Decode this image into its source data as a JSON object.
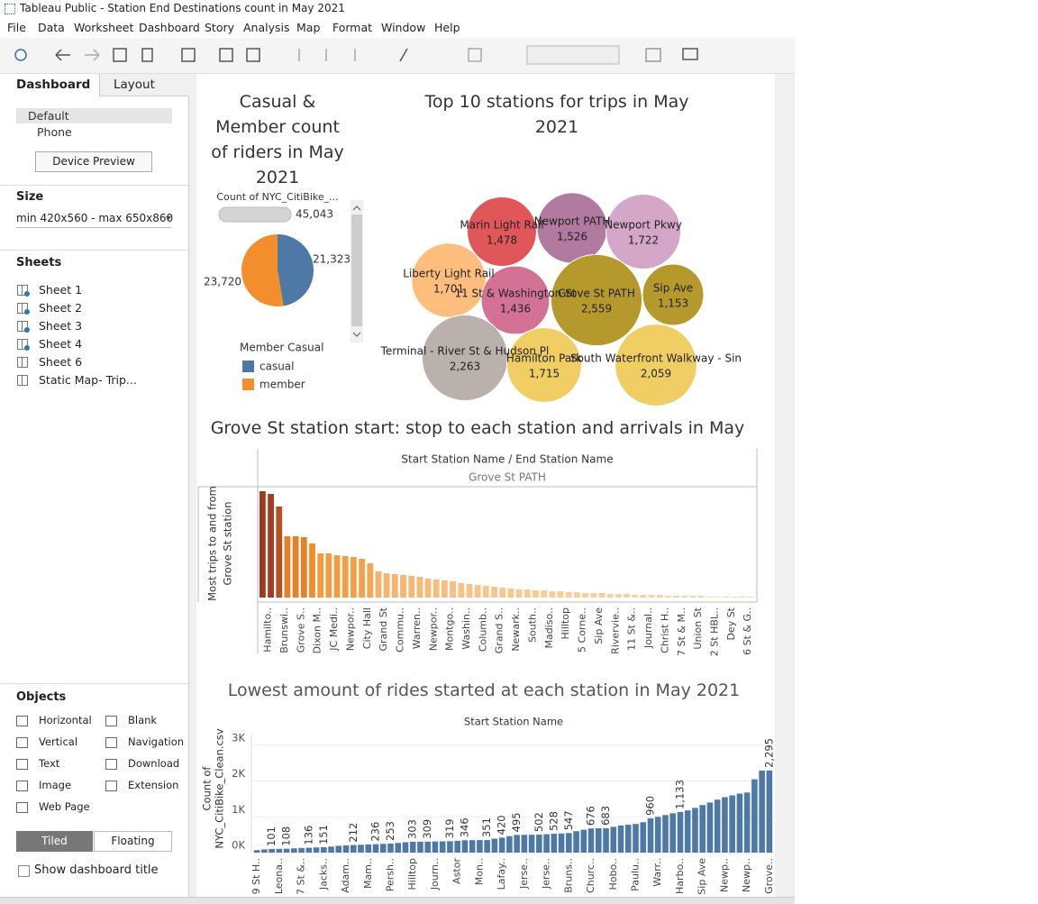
{
  "window_title": "Tableau Public - Station End Destinations count in May 2021",
  "menu": [
    "File",
    "Data",
    "Worksheet",
    "Dashboard",
    "Story",
    "Analysis",
    "Map",
    "Format",
    "Window",
    "Help"
  ],
  "sidebar": {
    "tabs": [
      "Dashboard",
      "Layout"
    ],
    "devices": [
      "Default",
      "Phone"
    ],
    "device_preview": "Device Preview",
    "size_heading": "Size",
    "size_value": "min 420x560 - max 650x860",
    "sheets_heading": "Sheets",
    "sheets": [
      "Sheet 1",
      "Sheet 2",
      "Sheet 3",
      "Sheet 4",
      "Sheet 6",
      "Static Map- Trip..."
    ],
    "objects_heading": "Objects",
    "objects": [
      "Horizontal",
      "Blank",
      "Vertical",
      "Navigation",
      "Text",
      "Download",
      "Image",
      "Extension",
      "Web Page"
    ],
    "layout_modes": [
      "Tiled",
      "Floating"
    ],
    "show_title": "Show dashboard title"
  },
  "chart_data": [
    {
      "type": "pie",
      "title": "Casual & Member count of riders in May 2021",
      "measure": "Count of NYC_CitiBike_...",
      "total": 45043,
      "total_label": "45,043",
      "legend_title": "Member Casual",
      "categories": [
        "casual",
        "member"
      ],
      "values": [
        21323,
        23720
      ],
      "value_labels": [
        "21,323",
        "23,720"
      ],
      "colors": [
        "#4e79a7",
        "#f28e2b"
      ]
    },
    {
      "type": "bubble",
      "title": "Top 10 stations for trips in May 2021",
      "categories": [
        "Marin Light Rail",
        "Newport PATH",
        "Newport Pkwy",
        "Liberty Light Rail",
        "11 St & Washington St",
        "Grove St PATH",
        "Sip Ave",
        "Terminal - River St & Hudson Pl",
        "Hamilton Park",
        "South Waterfront Walkway - Sin"
      ],
      "values": [
        1478,
        1526,
        1722,
        1701,
        1436,
        2559,
        1153,
        2263,
        1715,
        2059
      ],
      "value_labels": [
        "1,478",
        "1,526",
        "1,722",
        "1,701",
        "1,436",
        "2,559",
        "1,153",
        "2,263",
        "1,715",
        "2,059"
      ],
      "colors": [
        "#e15759",
        "#b07aa1",
        "#d4a6c8",
        "#ffbe7d",
        "#d37295",
        "#b6992d",
        "#b6992d",
        "#bab0ac",
        "#f1ce63",
        "#f1ce63"
      ]
    },
    {
      "type": "bar",
      "title": "Grove St station start: stop to each station and arrivals in May",
      "header": "Start Station Name / End Station Name",
      "subheader": "Grove St PATH",
      "y_label": [
        "Most trips to and from",
        "Grove St station"
      ],
      "color_range": [
        "#fbd4a6",
        "#f28e2b",
        "#a0391e"
      ],
      "categories": [
        "Hamilto..",
        null,
        "Brunswi..",
        null,
        "Grove S..",
        null,
        "Dixon M..",
        null,
        "JC Medi..",
        null,
        "Newpor..",
        null,
        "City Hall",
        null,
        "Grand St",
        null,
        "Commu..",
        null,
        "Warren..",
        null,
        "Newpor..",
        null,
        "Montgo..",
        null,
        "Washin..",
        null,
        "Columb..",
        null,
        "Grand S..",
        null,
        "Newark..",
        null,
        "South..",
        null,
        "Madiso..",
        null,
        "Hilltop",
        null,
        "5 Corne..",
        null,
        "Sip Ave",
        null,
        "Rivervie..",
        null,
        "11 St &..",
        null,
        "Journal..",
        null,
        "Christ H..",
        null,
        "7 St & M..",
        null,
        "Union St",
        null,
        "2 St HBL..",
        null,
        "Dey St",
        null,
        "6 St & G..",
        null
      ],
      "values": [
        118,
        115,
        101,
        68,
        68,
        67,
        60,
        49,
        49,
        47,
        46,
        45,
        43,
        38,
        29,
        27,
        26,
        25,
        24,
        23,
        21,
        20,
        19,
        18,
        16,
        15,
        14,
        13,
        12,
        11,
        10,
        9,
        9,
        8,
        8,
        7,
        7,
        6,
        6,
        5,
        5,
        5,
        4,
        4,
        4,
        3,
        3,
        3,
        3,
        2,
        2,
        2,
        2,
        2,
        1,
        1,
        1,
        1,
        1,
        1
      ]
    },
    {
      "type": "bar",
      "title": "Lowest amount of rides started at each station in May 2021",
      "header": "Start Station Name",
      "y_label": [
        "Count of",
        "NYC_CitiBike_Clean.csv"
      ],
      "color": "#4e79a7",
      "ylim": [
        0,
        3300
      ],
      "yticks": [
        {
          "value": 0,
          "label": "0K"
        },
        {
          "value": 1000,
          "label": "1K"
        },
        {
          "value": 2000,
          "label": "2K"
        },
        {
          "value": 3000,
          "label": "3K"
        }
      ],
      "grid": true,
      "categories": [
        "9 St H..",
        null,
        null,
        "Leona..",
        null,
        null,
        "7 St &..",
        null,
        null,
        "Jacks..",
        null,
        null,
        "Adam..",
        null,
        null,
        "Mam..",
        null,
        null,
        "Persh..",
        null,
        null,
        "Hilltop",
        null,
        null,
        "Journ..",
        null,
        null,
        "Astor",
        null,
        null,
        "Mon..",
        null,
        null,
        "Lafay..",
        null,
        null,
        "Jerse..",
        null,
        null,
        "Jerse..",
        null,
        null,
        "Bruns..",
        null,
        null,
        "Churc..",
        null,
        null,
        "Hobo..",
        null,
        null,
        "Paulu..",
        null,
        null,
        "Warr..",
        null,
        null,
        "Harbo..",
        null,
        null,
        "Sip Ave",
        null,
        null,
        "Newp..",
        null,
        null,
        "Newp..",
        null,
        null,
        "Grove.."
      ],
      "values": [
        70,
        90,
        101,
        105,
        108,
        120,
        130,
        136,
        145,
        151,
        170,
        190,
        205,
        212,
        220,
        230,
        236,
        245,
        253,
        270,
        290,
        303,
        306,
        309,
        312,
        316,
        319,
        330,
        346,
        348,
        350,
        351,
        390,
        420,
        460,
        495,
        497,
        500,
        502,
        515,
        528,
        535,
        547,
        600,
        640,
        676,
        680,
        683,
        720,
        760,
        780,
        800,
        850,
        960,
        1000,
        1050,
        1100,
        1133,
        1180,
        1250,
        1330,
        1400,
        1480,
        1550,
        1600,
        1650,
        1680,
        2050,
        2295,
        2295
      ],
      "value_labels": [
        null,
        null,
        "101",
        null,
        "108",
        null,
        null,
        "136",
        null,
        "151",
        null,
        null,
        null,
        "212",
        null,
        null,
        "236",
        null,
        "253",
        null,
        null,
        "303",
        null,
        "309",
        null,
        null,
        "319",
        null,
        "346",
        null,
        null,
        "351",
        null,
        "420",
        null,
        "495",
        null,
        null,
        "502",
        null,
        "528",
        null,
        "547",
        null,
        null,
        "676",
        null,
        "683",
        null,
        null,
        null,
        null,
        null,
        "960",
        null,
        null,
        null,
        "1,133",
        null,
        null,
        null,
        null,
        null,
        null,
        null,
        null,
        null,
        null,
        null,
        "2,295"
      ]
    }
  ]
}
